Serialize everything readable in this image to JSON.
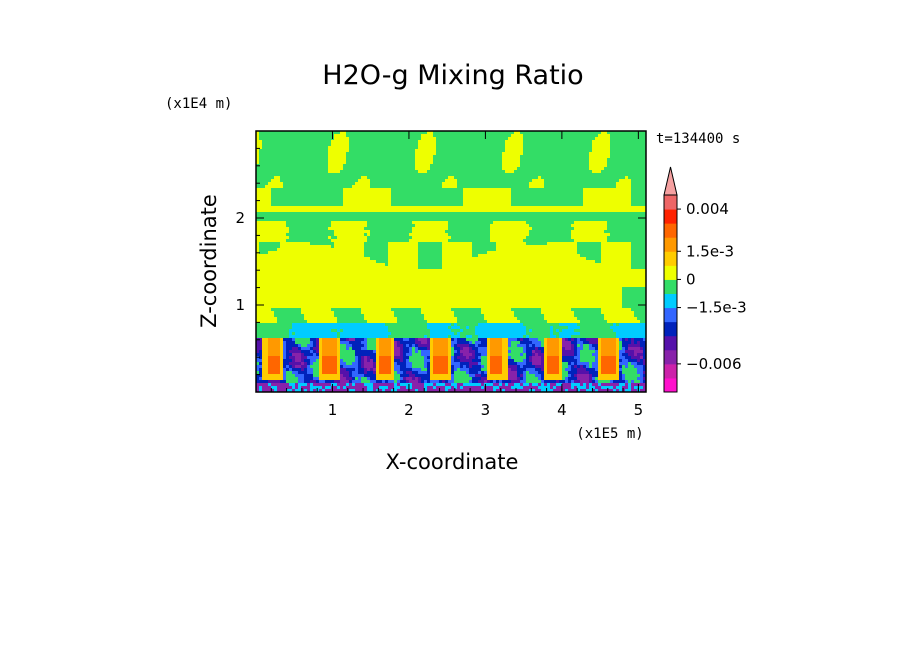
{
  "chart_data": {
    "type": "heatmap",
    "title": "H2O-g Mixing Ratio",
    "xlabel": "X-coordinate",
    "ylabel": "Z-coordinate",
    "x_multiplier": "(x1E5 m)",
    "y_multiplier": "(x1E4 m)",
    "time_label": "t=134400 s",
    "x_ticks": [
      "1",
      "2",
      "3",
      "4",
      "5"
    ],
    "y_ticks": [
      "1",
      "2"
    ],
    "xlim": [
      0,
      5.1
    ],
    "ylim": [
      0,
      3.0
    ],
    "colorbar": {
      "labels": [
        "0.004",
        "1.5e-3",
        "0",
        "−1.5e-3",
        "−0.006"
      ],
      "levels": [
        -0.009,
        -0.0075,
        -0.006,
        -0.0045,
        -0.003,
        -0.002,
        -0.0015,
        -0.001,
        0,
        0.001,
        0.0015,
        0.002,
        0.003,
        0.004,
        0.005
      ],
      "colors": [
        "#ff11cc",
        "#cc22aa",
        "#8822aa",
        "#5511aa",
        "#0022bb",
        "#3366ff",
        "#00ccff",
        "#33dd66",
        "#eeff00",
        "#ffcc00",
        "#ff9900",
        "#ff6600",
        "#ff2200",
        "#ee6666",
        "#f5a0a0"
      ]
    },
    "field_description_layers": {
      "upper": "mostly green with yellow patches",
      "band": "thin horizontal green band near z=2",
      "mid": "large yellow region between z=0.8 and z=1.7",
      "low": "cyan/green layer near z=0.6-0.8",
      "bottom": "turbulent mix of blue, purple, orange below z=0.6"
    }
  }
}
